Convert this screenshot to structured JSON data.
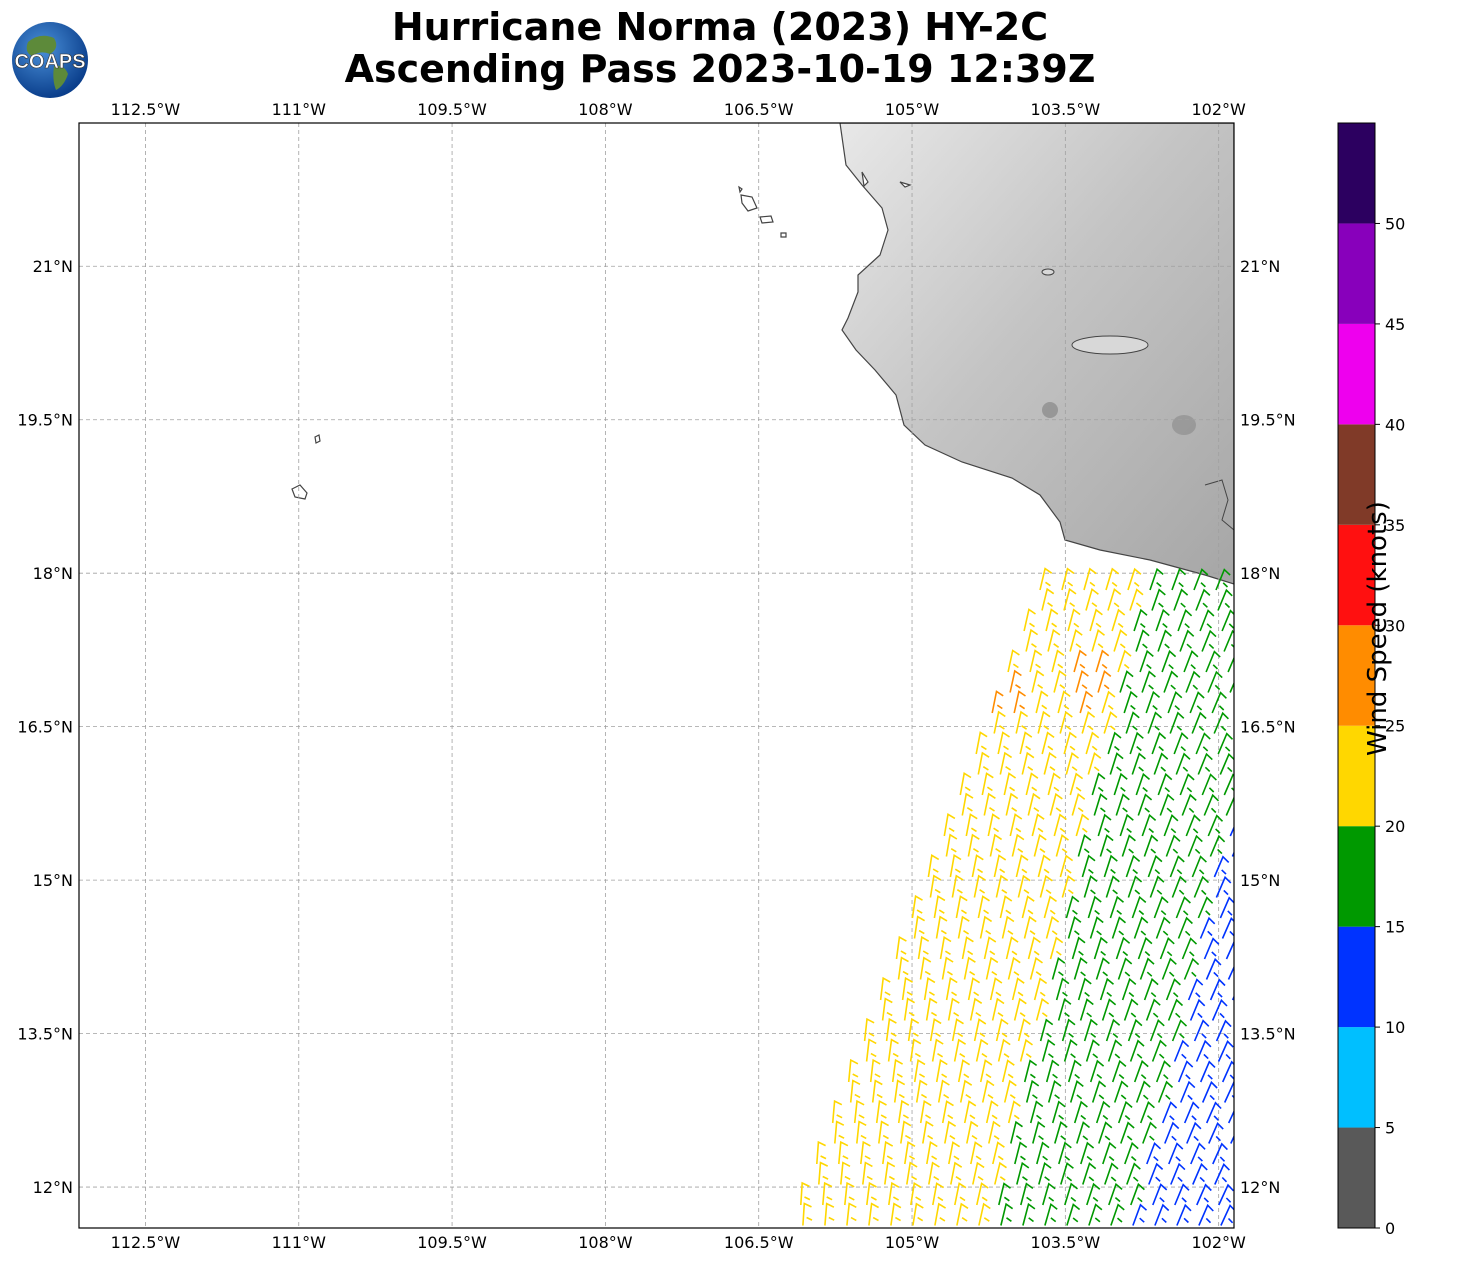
{
  "title": {
    "line1": "Hurricane Norma (2023) HY-2C",
    "line2": "Ascending Pass 2023-10-19 12:39Z"
  },
  "logo": {
    "text": "COAPS"
  },
  "map": {
    "lon_range": [
      -113.15,
      -101.85
    ],
    "lat_range": [
      11.6,
      22.4
    ],
    "lon_ticks": [
      {
        "value": -112.5,
        "label": "112.5°W"
      },
      {
        "value": -111.0,
        "label": "111°W"
      },
      {
        "value": -109.5,
        "label": "109.5°W"
      },
      {
        "value": -108.0,
        "label": "108°W"
      },
      {
        "value": -106.5,
        "label": "106.5°W"
      },
      {
        "value": -105.0,
        "label": "105°W"
      },
      {
        "value": -103.5,
        "label": "103.5°W"
      },
      {
        "value": -102.0,
        "label": "102°W"
      }
    ],
    "lat_ticks": [
      {
        "value": 21.0,
        "label": "21°N"
      },
      {
        "value": 19.5,
        "label": "19.5°N"
      },
      {
        "value": 18.0,
        "label": "18°N"
      },
      {
        "value": 16.5,
        "label": "16.5°N"
      },
      {
        "value": 15.0,
        "label": "15°N"
      },
      {
        "value": 13.5,
        "label": "13.5°N"
      },
      {
        "value": 12.0,
        "label": "12°N"
      }
    ],
    "land_fill": "#c8c8c8",
    "coast_color": "#444444",
    "grid": "dashed",
    "wind_barbs_by_speed": [
      {
        "min": 10,
        "max": 15,
        "color": "#0033ff"
      },
      {
        "min": 15,
        "max": 20,
        "color": "#009900"
      },
      {
        "min": 20,
        "max": 25,
        "color": "#ffd700"
      },
      {
        "min": 25,
        "max": 30,
        "color": "#ff8c00"
      }
    ]
  },
  "colorbar": {
    "label": "Wind Speed (knots)",
    "bins": [
      {
        "from": 0,
        "to": 5,
        "color": "#595959"
      },
      {
        "from": 5,
        "to": 10,
        "color": "#00bfff"
      },
      {
        "from": 10,
        "to": 15,
        "color": "#0033ff"
      },
      {
        "from": 15,
        "to": 20,
        "color": "#009900"
      },
      {
        "from": 20,
        "to": 25,
        "color": "#ffd700"
      },
      {
        "from": 25,
        "to": 30,
        "color": "#ff8c00"
      },
      {
        "from": 30,
        "to": 35,
        "color": "#ff1010"
      },
      {
        "from": 35,
        "to": 40,
        "color": "#803a28"
      },
      {
        "from": 40,
        "to": 45,
        "color": "#ee00ee"
      },
      {
        "from": 45,
        "to": 50,
        "color": "#8800bb"
      },
      {
        "from": 50,
        "to": 55,
        "color": "#2c0060"
      }
    ],
    "ticks": [
      "0",
      "5",
      "10",
      "15",
      "20",
      "25",
      "30",
      "35",
      "40",
      "45",
      "50"
    ]
  }
}
